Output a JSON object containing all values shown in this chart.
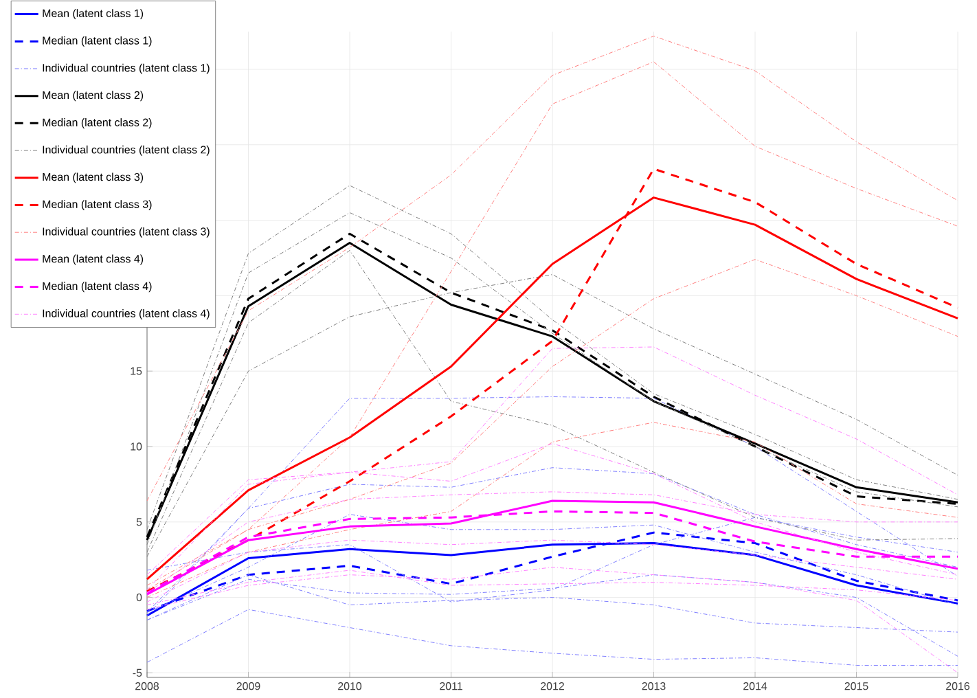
{
  "chart_data": {
    "type": "line",
    "x": [
      2008,
      2009,
      2010,
      2011,
      2012,
      2013,
      2014,
      2015,
      2016
    ],
    "xlim": [
      2008,
      2016
    ],
    "xticks": [
      2008,
      2009,
      2010,
      2011,
      2012,
      2013,
      2014,
      2015,
      2016
    ],
    "ylim": [
      -5.3,
      37.5
    ],
    "yticks": [
      -5,
      0,
      5,
      10,
      15,
      {
        "value": 20,
        "label": null
      },
      {
        "value": 25,
        "label": null
      },
      {
        "value": 30,
        "label": null
      },
      {
        "value": 35,
        "label": null
      }
    ],
    "grid": true,
    "legend": "top left",
    "series": [
      {
        "name": "Mean (latent class 1)",
        "color": "#0000ff",
        "line_style": "solid",
        "values": [
          -1.2,
          2.6,
          3.2,
          2.8,
          3.5,
          3.6,
          2.8,
          0.8,
          -0.4
        ]
      },
      {
        "name": "Median (latent class 1)",
        "color": "#0000ff",
        "line_style": "dashed",
        "values": [
          -0.9,
          1.5,
          2.1,
          0.9,
          2.7,
          4.3,
          3.6,
          1.1,
          -0.2
        ]
      },
      {
        "name": "Individual countries (latent class 1)",
        "color": "#8080ff",
        "line_style": "dashdot",
        "values": [
          -4.3,
          -0.8,
          -2.0,
          -3.2,
          -3.7,
          -4.1,
          -4.0,
          -4.5,
          -4.5
        ]
      },
      {
        "color": "#8080ff",
        "line_style": "dashdot",
        "values": [
          -1.0,
          5.9,
          13.2,
          13.2,
          13.3,
          13.2,
          10.0,
          5.7,
          1.4
        ]
      },
      {
        "color": "#8080ff",
        "line_style": "dashdot",
        "values": [
          -1.2,
          5.9,
          7.5,
          7.3,
          8.6,
          8.2,
          5.5,
          3.5,
          2.0
        ]
      },
      {
        "color": "#8080ff",
        "line_style": "dashdot",
        "values": [
          1.8,
          3.0,
          3.5,
          -0.3,
          0.5,
          3.5,
          5.3,
          4.0,
          3.0
        ]
      },
      {
        "color": "#8080ff",
        "line_style": "dashdot",
        "values": [
          -1.5,
          1.5,
          -0.5,
          -0.2,
          0.0,
          -0.5,
          -1.7,
          -2.0,
          -2.3
        ]
      },
      {
        "color": "#8080ff",
        "line_style": "dashdot",
        "values": [
          -1.0,
          2.0,
          5.5,
          4.5,
          4.5,
          4.8,
          3.0,
          1.5,
          -0.5
        ]
      },
      {
        "color": "#8080ff",
        "line_style": "dashdot",
        "values": [
          -1.5,
          1.2,
          0.3,
          0.2,
          0.6,
          1.5,
          1.0,
          0.0,
          -3.9
        ]
      },
      {
        "name": "Mean (latent class 2)",
        "color": "#000000",
        "line_style": "solid",
        "values": [
          3.8,
          19.3,
          23.5,
          19.4,
          17.3,
          13.0,
          10.2,
          7.3,
          6.3
        ]
      },
      {
        "name": "Median (latent class 2)",
        "color": "#000000",
        "line_style": "dashed",
        "values": [
          4.0,
          19.8,
          24.1,
          20.2,
          17.7,
          13.3,
          10.0,
          6.7,
          6.2
        ]
      },
      {
        "name": "Individual countries (latent class 2)",
        "color": "#808080",
        "line_style": "dashdot",
        "values": [
          2.7,
          15.0,
          18.6,
          20.2,
          21.4,
          17.8,
          14.8,
          11.8,
          8.1
        ]
      },
      {
        "color": "#808080",
        "line_style": "dashdot",
        "values": [
          4.5,
          22.8,
          27.3,
          24.1,
          18.4,
          13.5,
          10.8,
          7.8,
          6.5
        ]
      },
      {
        "color": "#808080",
        "line_style": "dashdot",
        "values": [
          3.0,
          18.2,
          23.0,
          13.0,
          11.4,
          8.3,
          5.3,
          3.8,
          3.9
        ]
      },
      {
        "color": "#808080",
        "line_style": "dashdot",
        "values": [
          3.5,
          21.5,
          25.5,
          22.5,
          17.5,
          13.0,
          10.0,
          7.0,
          6.0
        ]
      },
      {
        "name": "Mean (latent class 3)",
        "color": "#ff0000",
        "line_style": "solid",
        "values": [
          1.2,
          7.1,
          10.6,
          15.3,
          22.1,
          26.5,
          24.7,
          21.1,
          18.5
        ]
      },
      {
        "name": "Median (latent class 3)",
        "color": "#ff0000",
        "line_style": "dashed",
        "values": [
          0.4,
          3.8,
          7.7,
          12.0,
          17.0,
          28.4,
          26.2,
          22.1,
          19.2
        ]
      },
      {
        "name": "Individual countries (latent class 3)",
        "color": "#ff8080",
        "line_style": "dashdot",
        "values": [
          6.4,
          19.0,
          23.2,
          28.0,
          34.6,
          37.2,
          34.9,
          30.2,
          26.3
        ]
      },
      {
        "color": "#ff8080",
        "line_style": "dashdot",
        "values": [
          0.8,
          4.5,
          10.6,
          21.6,
          32.7,
          35.5,
          29.9,
          27.1,
          24.6
        ]
      },
      {
        "color": "#ff8080",
        "line_style": "dashdot",
        "values": [
          0.5,
          4.5,
          6.5,
          8.9,
          15.3,
          19.8,
          22.4,
          20.0,
          17.3
        ]
      },
      {
        "color": "#ff8080",
        "line_style": "dashdot",
        "values": [
          0.0,
          3.0,
          4.5,
          5.7,
          10.3,
          11.6,
          10.3,
          6.2,
          5.3
        ]
      },
      {
        "name": "Mean (latent class 4)",
        "color": "#ff00ff",
        "line_style": "solid",
        "values": [
          0.2,
          3.8,
          4.7,
          4.9,
          6.4,
          6.3,
          4.7,
          3.2,
          1.9
        ]
      },
      {
        "name": "Median (latent class 4)",
        "color": "#ff00ff",
        "line_style": "dashed",
        "values": [
          0.3,
          4.0,
          5.2,
          5.3,
          5.7,
          5.6,
          3.7,
          2.7,
          2.7
        ]
      },
      {
        "name": "Individual countries (latent class 4)",
        "color": "#ff80ff",
        "line_style": "dashdot",
        "values": [
          1.5,
          7.8,
          8.3,
          9.0,
          16.5,
          16.6,
          13.4,
          10.5,
          6.8
        ]
      },
      {
        "color": "#ff80ff",
        "line_style": "dashdot",
        "values": [
          0.5,
          7.5,
          8.3,
          7.7,
          10.2,
          8.2,
          5.0,
          3.0,
          1.5
        ]
      },
      {
        "color": "#ff80ff",
        "line_style": "dashdot",
        "values": [
          0.3,
          5.0,
          6.5,
          6.8,
          7.0,
          6.8,
          5.5,
          5.0,
          5.0
        ]
      },
      {
        "color": "#ff80ff",
        "line_style": "dashdot",
        "values": [
          -0.3,
          3.0,
          3.8,
          3.5,
          3.8,
          3.5,
          2.8,
          2.0,
          1.2
        ]
      },
      {
        "color": "#ff80ff",
        "line_style": "dashdot",
        "values": [
          -0.5,
          1.0,
          1.8,
          0.8,
          0.9,
          1.0,
          0.8,
          0.5,
          -0.2
        ]
      },
      {
        "color": "#ff80ff",
        "line_style": "dashdot",
        "values": [
          -0.8,
          0.8,
          1.5,
          1.2,
          2.0,
          1.5,
          1.0,
          -0.2,
          -5.0
        ]
      }
    ]
  }
}
